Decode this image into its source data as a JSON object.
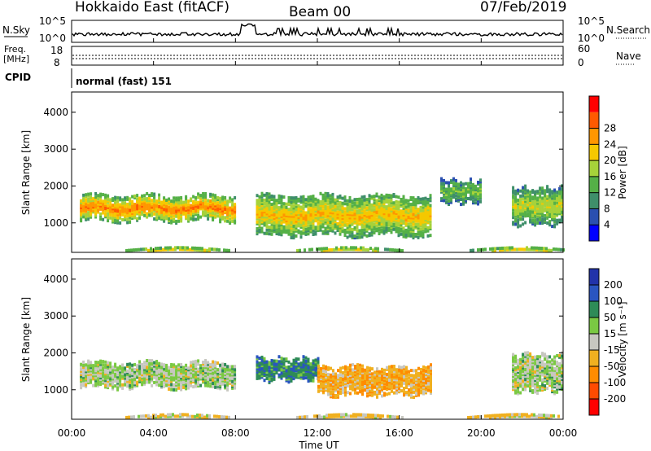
{
  "header": {
    "station": "Hokkaido East (fitACF)",
    "beam": "Beam 00",
    "date": "07/Feb/2019"
  },
  "panels": {
    "nsky": {
      "label": "N.Sky",
      "ticks": [
        "10^5",
        "10^0"
      ],
      "right_label": "N.Search",
      "right_ticks": [
        "10^5",
        "10^0"
      ]
    },
    "freq": {
      "label_top": "Freq.",
      "label_unit": "[MHz]",
      "ticks": [
        "18",
        "8"
      ],
      "right_label": "Nave",
      "right_ticks": [
        "60",
        "0"
      ]
    },
    "cpid": {
      "label": "CPID",
      "mode": "normal (fast) 151"
    }
  },
  "colors": {
    "power_scale": [
      "#0000ff",
      "#2a4fb0",
      "#3f8f6a",
      "#55b047",
      "#a6d23a",
      "#f5c800",
      "#ff9600",
      "#ff5a00",
      "#ff0000"
    ],
    "velocity_scale": [
      "#2233aa",
      "#2a55c0",
      "#2e8b57",
      "#7ac943",
      "#c7c7c0",
      "#f0b020",
      "#ff8c00",
      "#ff4b00",
      "#ff0000"
    ]
  },
  "chart_data": [
    {
      "type": "heatmap",
      "name": "power",
      "ylabel": "Slant Range [km]",
      "yticks": [
        "1000",
        "2000",
        "3000",
        "4000"
      ],
      "ylim": [
        200,
        4550
      ],
      "colorbar_label": "Power [dB]",
      "colorbar_ticks": [
        "4",
        "8",
        "12",
        "16",
        "20",
        "24",
        "28"
      ],
      "xlim_hours": [
        0,
        24
      ],
      "bands": [
        {
          "t0": 0.4,
          "t1": 8.0,
          "r0": 1100,
          "r1": 1800,
          "peak": 26
        },
        {
          "t0": 9.0,
          "t1": 17.5,
          "r0": 700,
          "r1": 1800,
          "peak": 22
        },
        {
          "t0": 18.0,
          "t1": 20.0,
          "r0": 1600,
          "r1": 2200,
          "peak": 14
        },
        {
          "t0": 21.5,
          "t1": 24.0,
          "r0": 1000,
          "r1": 2000,
          "peak": 18
        },
        {
          "t0": 0.0,
          "t1": 24.0,
          "r0": 220,
          "r1": 330,
          "peak": 20
        }
      ]
    },
    {
      "type": "heatmap",
      "name": "velocity",
      "ylabel": "Slant Range [km]",
      "yticks": [
        "1000",
        "2000",
        "3000",
        "4000"
      ],
      "ylim": [
        200,
        4550
      ],
      "colorbar_label": "Velocity [m s⁻¹]",
      "colorbar_ticks": [
        "200",
        "100",
        "50",
        "15",
        "-15",
        "-50",
        "-100",
        "-200"
      ],
      "xlabel": "Time UT",
      "xticks": [
        "00:00",
        "04:00",
        "08:00",
        "12:00",
        "16:00",
        "20:00",
        "00:00"
      ],
      "xlim_hours": [
        0,
        24
      ],
      "bands": [
        {
          "t0": 0.4,
          "t1": 8.0,
          "r0": 1100,
          "r1": 1800,
          "v": 0
        },
        {
          "t0": 9.0,
          "t1": 12.0,
          "r0": 1300,
          "r1": 1900,
          "v": 60
        },
        {
          "t0": 12.0,
          "t1": 17.5,
          "r0": 900,
          "r1": 1700,
          "v": -60
        },
        {
          "t0": 21.5,
          "t1": 24.0,
          "r0": 1000,
          "r1": 2000,
          "v": 0
        },
        {
          "t0": 0.0,
          "t1": 24.0,
          "r0": 220,
          "r1": 330,
          "v": -30
        }
      ]
    }
  ]
}
